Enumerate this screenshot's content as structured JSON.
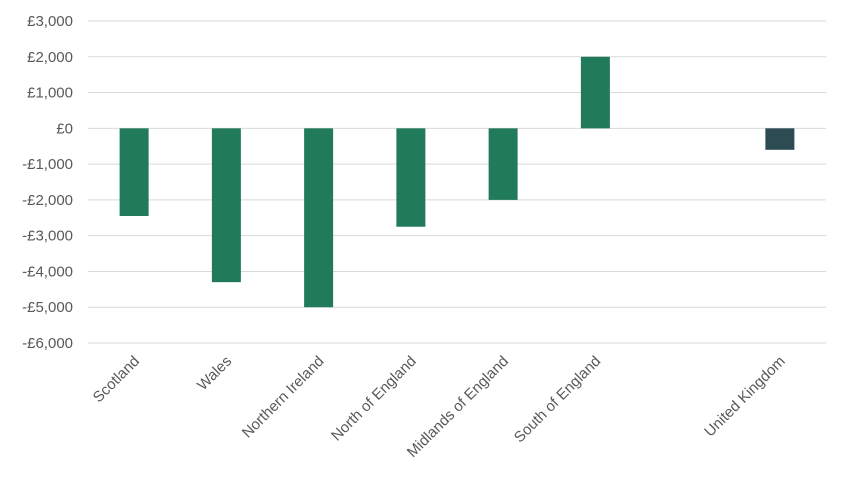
{
  "chart_data": {
    "type": "bar",
    "title": "",
    "xlabel": "",
    "ylabel": "",
    "ylim": [
      -6000,
      3000
    ],
    "yticks": [
      3000,
      2000,
      1000,
      0,
      -1000,
      -2000,
      -3000,
      -4000,
      -5000,
      -6000
    ],
    "ytick_labels": [
      "£3,000",
      "£2,000",
      "£1,000",
      "£0",
      "-£1,000",
      "-£2,000",
      "-£3,000",
      "-£4,000",
      "-£5,000",
      "-£6,000"
    ],
    "categories": [
      "Scotland",
      "Wales",
      "Northern Ireland",
      "North of England",
      "Midlands of England",
      "South of England",
      "",
      "United Kingdom"
    ],
    "values": [
      -2450,
      -4300,
      -5000,
      -2750,
      -2000,
      2000,
      null,
      -600
    ],
    "colors": [
      "#217a5a",
      "#217a5a",
      "#217a5a",
      "#217a5a",
      "#217a5a",
      "#217a5a",
      "#217a5a",
      "#2d4b52"
    ],
    "grid": true,
    "legend": "none"
  }
}
